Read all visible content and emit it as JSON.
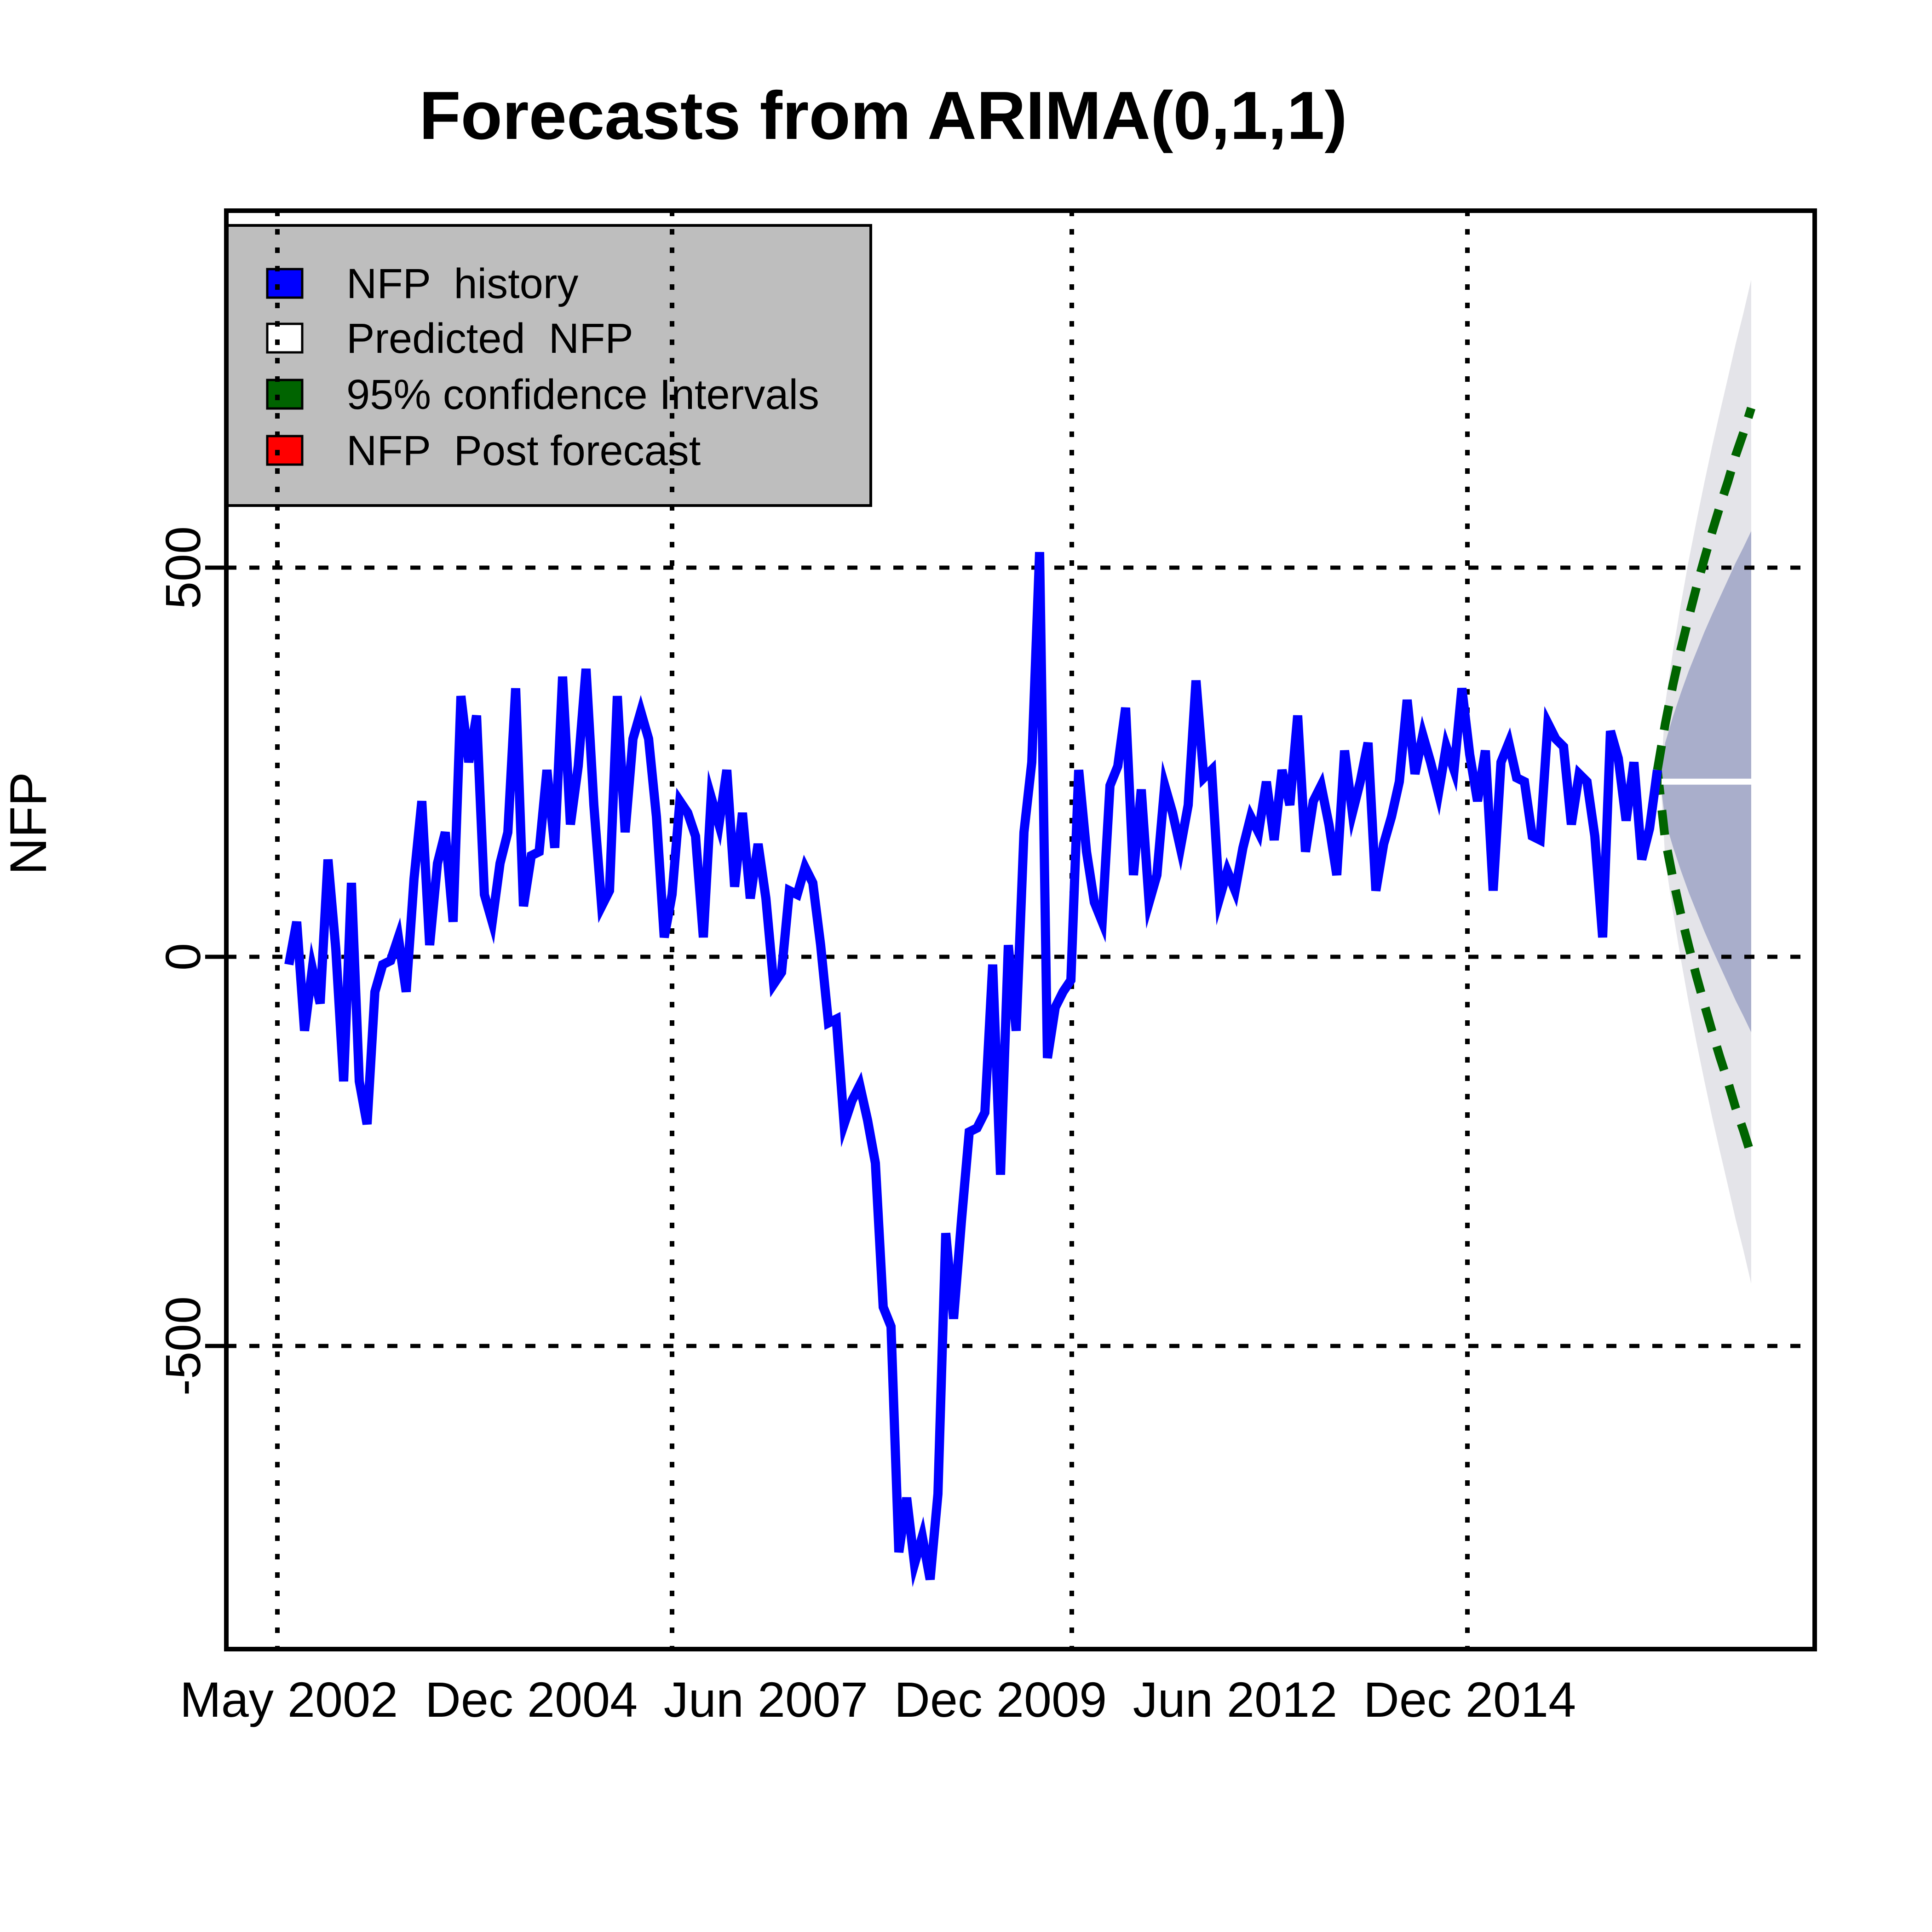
{
  "chart_data": {
    "type": "line",
    "title": "Forecasts from ARIMA(0,1,1)",
    "ylabel": "NFP",
    "xlabel": "",
    "grid": "on",
    "y_ticks": [
      500,
      0,
      -500
    ],
    "y_tick_labels": [
      "500",
      "0",
      "-500"
    ],
    "ylim": [
      -890,
      960
    ],
    "x_ticks": [
      {
        "label": "May 2002",
        "month": 0
      },
      {
        "label": "Dec 2004",
        "month": 31
      },
      {
        "label": "Jun 2007",
        "month": 61
      },
      {
        "label": "Dec 2009",
        "month": 91
      },
      {
        "label": "Jun 2012",
        "month": 121
      },
      {
        "label": "Dec 2014",
        "month": 151
      }
    ],
    "legend": {
      "position": "top-left",
      "bg": "#BEBEBE",
      "items": [
        {
          "label": "NFP  history",
          "color": "#0000FF"
        },
        {
          "label": "Predicted  NFP",
          "color": "#FFFFFF"
        },
        {
          "label": "95% confidence Intervals",
          "color": "#006400"
        },
        {
          "label": "NFP  Post forecast",
          "color": "#FF0000"
        }
      ]
    },
    "colors": {
      "history": "#0000FF",
      "predicted": "#FFFFFF",
      "ci": "#006400",
      "post_forecast": "#FF0000",
      "band80": "#A9AECB",
      "band95": "#E4E4E9",
      "legend_bg": "#BEBEBE",
      "grid": "#000000"
    },
    "series": {
      "name": "NFP history",
      "start": "May 2002",
      "frequency": "monthly",
      "values": [
        -10,
        45,
        -95,
        -15,
        -60,
        125,
        10,
        -160,
        95,
        -160,
        -215,
        -45,
        -10,
        -5,
        25,
        -45,
        100,
        200,
        15,
        120,
        160,
        45,
        335,
        250,
        310,
        80,
        45,
        120,
        160,
        345,
        65,
        130,
        135,
        240,
        140,
        360,
        170,
        245,
        370,
        195,
        65,
        85,
        335,
        160,
        280,
        315,
        280,
        180,
        25,
        80,
        200,
        185,
        155,
        25,
        205,
        170,
        240,
        90,
        185,
        75,
        145,
        75,
        -35,
        -20,
        85,
        80,
        115,
        95,
        15,
        -85,
        -80,
        -215,
        -185,
        -165,
        -210,
        -265,
        -450,
        -475,
        -765,
        -695,
        -780,
        -745,
        -800,
        -690,
        -355,
        -465,
        -340,
        -225,
        -220,
        -200,
        -10,
        -280,
        15,
        -95,
        160,
        250,
        520,
        -130,
        -65,
        -45,
        -30,
        240,
        135,
        70,
        45,
        220,
        245,
        320,
        105,
        215,
        70,
        105,
        220,
        185,
        140,
        195,
        355,
        230,
        240,
        75,
        110,
        85,
        140,
        180,
        160,
        225,
        150,
        240,
        195,
        310,
        135,
        200,
        220,
        170,
        105,
        265,
        185,
        225,
        275,
        85,
        145,
        180,
        225,
        330,
        235,
        285,
        250,
        210,
        270,
        240,
        345,
        260,
        200,
        265,
        85,
        250,
        275,
        230,
        225,
        155,
        150,
        300,
        280,
        270,
        170,
        235,
        225,
        155,
        25,
        290,
        255,
        175,
        250,
        125,
        165,
        240
      ]
    },
    "forecast": {
      "start": "Jan 2017",
      "horizon": 12,
      "mean": [
        225,
        225,
        225,
        225,
        225,
        225,
        225,
        225,
        225,
        225,
        225,
        225
      ],
      "lo80": [
        175,
        141,
        111,
        83,
        58,
        33,
        10,
        -12,
        -34,
        -56,
        -76,
        -97
      ],
      "hi80": [
        275,
        309,
        339,
        367,
        392,
        417,
        440,
        462,
        484,
        506,
        526,
        547
      ],
      "lo95": [
        125,
        57,
        -3,
        -59,
        -110,
        -159,
        -206,
        -250,
        -293,
        -337,
        -377,
        -420
      ],
      "hi95": [
        325,
        393,
        453,
        509,
        560,
        609,
        656,
        700,
        743,
        787,
        827,
        870
      ],
      "ci95_lower": [
        151,
        100,
        55,
        14,
        -25,
        -61,
        -96,
        -129,
        -160,
        -194,
        -223,
        -255
      ],
      "ci95_upper": [
        299,
        350,
        395,
        436,
        475,
        511,
        546,
        579,
        610,
        644,
        673,
        705
      ]
    }
  }
}
